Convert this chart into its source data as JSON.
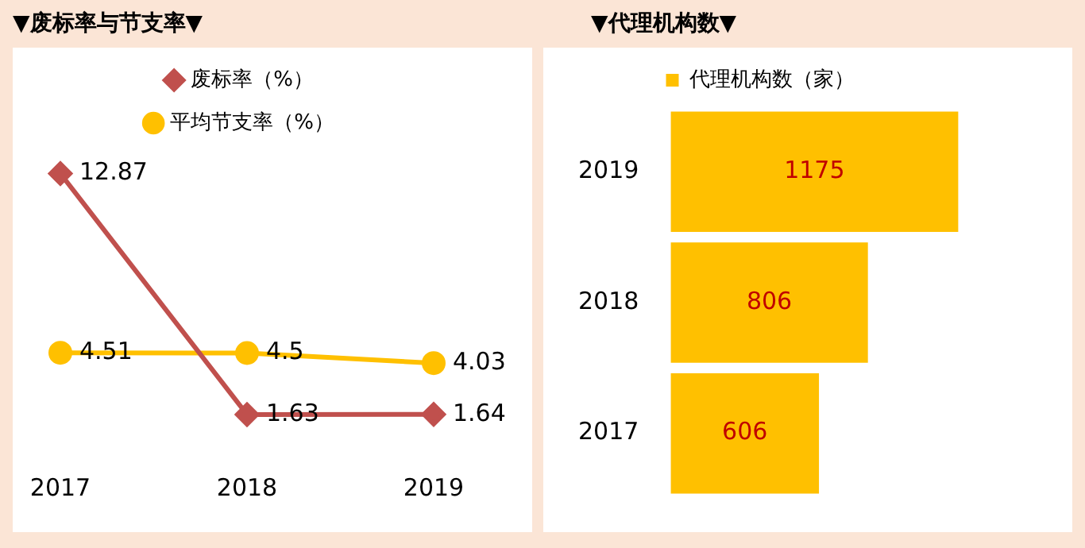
{
  "chart_data": [
    {
      "type": "line",
      "title": "▼废标率与节支率▼",
      "categories": [
        "2017",
        "2018",
        "2019"
      ],
      "series": [
        {
          "name": "废标率（%）",
          "color": "#c0504d",
          "marker": "diamond",
          "values": [
            12.87,
            1.63,
            1.64
          ]
        },
        {
          "name": "平均节支率（%）",
          "color": "#ffc000",
          "marker": "circle",
          "values": [
            4.51,
            4.5,
            4.03
          ]
        }
      ],
      "data_labels": true,
      "legend": "top",
      "grid": false,
      "tick_labels": "x",
      "line_style": "solid"
    },
    {
      "type": "bar",
      "orientation": "horizontal",
      "title": "▼代理机构数▼",
      "categories": [
        "2019",
        "2018",
        "2017"
      ],
      "series": [
        {
          "name": "代理机构数（家）",
          "color": "#ffc000",
          "values": [
            1175,
            806,
            606
          ]
        }
      ],
      "data_labels": true,
      "legend": "top",
      "grid": false,
      "tick_labels": "y"
    }
  ]
}
